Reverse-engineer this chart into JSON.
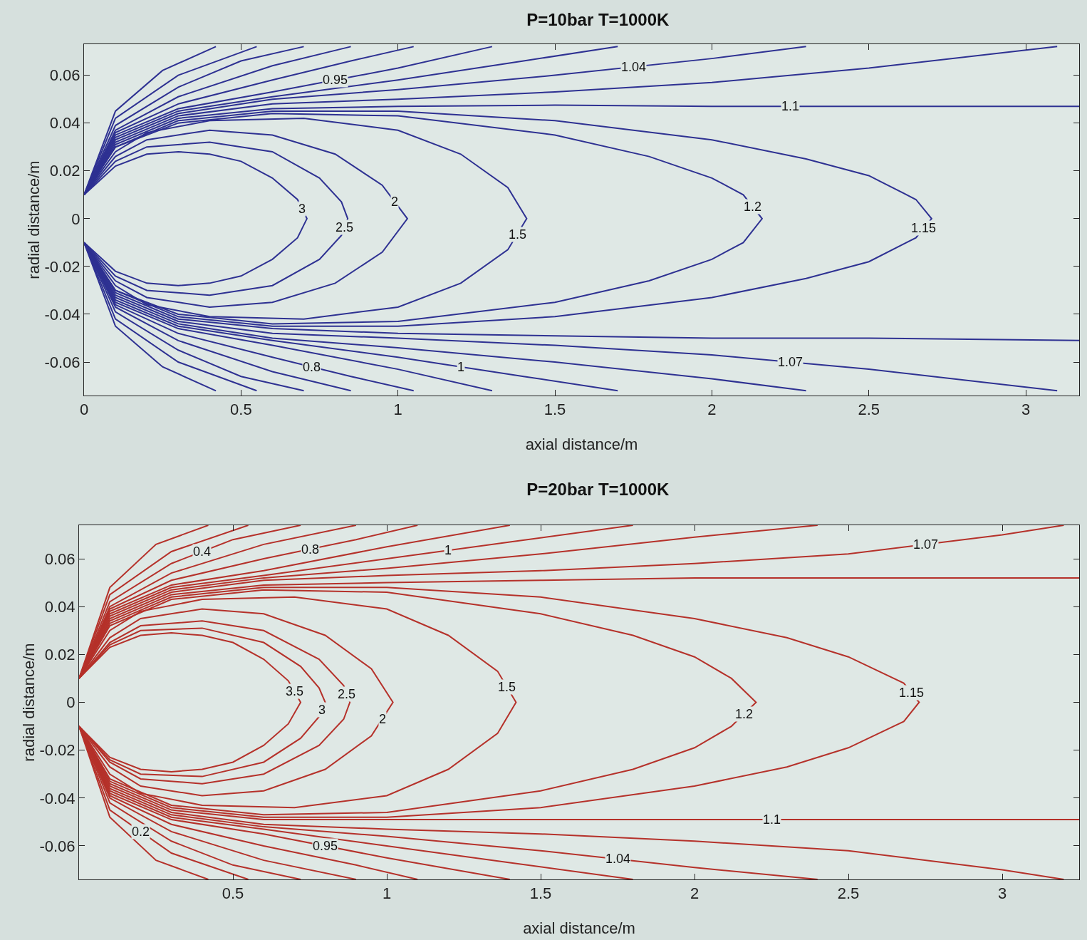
{
  "chart_data": [
    {
      "type": "line",
      "title": "P=10bar T=1000K",
      "xlabel": "axial distance/m",
      "ylabel": "radial distance/m",
      "xlim": [
        0,
        3.17
      ],
      "ylim": [
        -0.074,
        0.073
      ],
      "xticks": [
        0,
        0.5,
        1,
        1.5,
        2,
        2.5,
        3
      ],
      "yticks": [
        -0.06,
        -0.04,
        -0.02,
        0,
        0.02,
        0.04,
        0.06
      ],
      "grid": false,
      "legend": false,
      "series": [
        {
          "name": "3",
          "color": "#2e3192",
          "x": [
            0,
            0.1,
            0.2,
            0.3,
            0.4,
            0.5,
            0.6,
            0.68,
            0.71,
            0.68,
            0.6,
            0.5,
            0.4,
            0.3,
            0.2,
            0.1,
            0
          ],
          "values": [
            0.01,
            0.022,
            0.027,
            0.028,
            0.027,
            0.024,
            0.017,
            0.008,
            0,
            -0.008,
            -0.017,
            -0.024,
            -0.027,
            -0.028,
            -0.027,
            -0.022,
            -0.01
          ]
        },
        {
          "name": "2.5",
          "color": "#2e3192",
          "x": [
            0,
            0.1,
            0.2,
            0.4,
            0.6,
            0.75,
            0.82,
            0.84,
            0.82,
            0.75,
            0.6,
            0.4,
            0.2,
            0.1,
            0
          ],
          "values": [
            0.01,
            0.024,
            0.03,
            0.032,
            0.028,
            0.017,
            0.007,
            0,
            -0.007,
            -0.017,
            -0.028,
            -0.032,
            -0.03,
            -0.024,
            -0.01
          ]
        },
        {
          "name": "2",
          "color": "#2e3192",
          "x": [
            0,
            0.1,
            0.2,
            0.4,
            0.6,
            0.8,
            0.95,
            1.03,
            0.95,
            0.8,
            0.6,
            0.4,
            0.2,
            0.1,
            0
          ],
          "values": [
            0.01,
            0.026,
            0.033,
            0.037,
            0.035,
            0.027,
            0.014,
            0,
            -0.014,
            -0.027,
            -0.035,
            -0.037,
            -0.033,
            -0.026,
            -0.01
          ]
        },
        {
          "name": "1.5",
          "color": "#2e3192",
          "x": [
            0,
            0.1,
            0.2,
            0.4,
            0.7,
            1.0,
            1.2,
            1.35,
            1.41,
            1.35,
            1.2,
            1.0,
            0.7,
            0.4,
            0.2,
            0.1,
            0
          ],
          "values": [
            0.01,
            0.028,
            0.036,
            0.041,
            0.042,
            0.037,
            0.027,
            0.013,
            0,
            -0.013,
            -0.027,
            -0.037,
            -0.042,
            -0.041,
            -0.036,
            -0.028,
            -0.01
          ]
        },
        {
          "name": "1.2",
          "color": "#2e3192",
          "x": [
            0,
            0.1,
            0.3,
            0.6,
            1.0,
            1.5,
            1.8,
            2.0,
            2.1,
            2.16,
            2.1,
            2.0,
            1.8,
            1.5,
            1.0,
            0.6,
            0.3,
            0.1,
            0
          ],
          "values": [
            0.01,
            0.03,
            0.04,
            0.044,
            0.043,
            0.035,
            0.026,
            0.017,
            0.01,
            0,
            -0.01,
            -0.017,
            -0.026,
            -0.035,
            -0.043,
            -0.044,
            -0.04,
            -0.03,
            -0.01
          ]
        },
        {
          "name": "1.15",
          "color": "#2e3192",
          "x": [
            0,
            0.1,
            0.3,
            0.6,
            1.0,
            1.5,
            2.0,
            2.3,
            2.5,
            2.65,
            2.7,
            2.65,
            2.5,
            2.3,
            2.0,
            1.5,
            1.0,
            0.6,
            0.3,
            0.1,
            0
          ],
          "values": [
            0.01,
            0.03,
            0.041,
            0.045,
            0.045,
            0.041,
            0.033,
            0.025,
            0.018,
            0.008,
            0,
            -0.008,
            -0.018,
            -0.025,
            -0.033,
            -0.041,
            -0.045,
            -0.045,
            -0.041,
            -0.03,
            -0.01
          ]
        },
        {
          "name": "1.1",
          "color": "#2e3192",
          "x": [
            0,
            0.1,
            0.3,
            0.6,
            1.0,
            1.5,
            2.0,
            2.5,
            3.17,
            null,
            0,
            0.1,
            0.3,
            0.6,
            1.0,
            1.5,
            2.0,
            2.5,
            3.17
          ],
          "values": [
            0.01,
            0.031,
            0.042,
            0.046,
            0.047,
            0.0475,
            0.047,
            0.047,
            0.047,
            null,
            -0.01,
            -0.031,
            -0.042,
            -0.046,
            -0.048,
            -0.049,
            -0.05,
            -0.05,
            -0.051
          ]
        },
        {
          "name": "1.07",
          "color": "#2e3192",
          "x": [
            0,
            0.1,
            0.3,
            0.6,
            1.0,
            1.5,
            2.0,
            2.5,
            3.1,
            null,
            0,
            0.1,
            0.3,
            0.6,
            1.0,
            1.5,
            2.0,
            2.5,
            3.1
          ],
          "values": [
            0.01,
            0.032,
            0.043,
            0.048,
            0.05,
            0.053,
            0.057,
            0.063,
            0.072,
            null,
            -0.01,
            -0.032,
            -0.043,
            -0.048,
            -0.05,
            -0.053,
            -0.057,
            -0.063,
            -0.072
          ]
        },
        {
          "name": "1.04",
          "color": "#2e3192",
          "x": [
            0,
            0.1,
            0.3,
            0.6,
            1.0,
            1.5,
            2.0,
            2.3,
            null,
            0,
            0.1,
            0.3,
            0.6,
            1.0,
            1.5,
            2.0,
            2.3
          ],
          "values": [
            0.01,
            0.033,
            0.044,
            0.05,
            0.054,
            0.06,
            0.067,
            0.072,
            null,
            -0.01,
            -0.033,
            -0.044,
            -0.05,
            -0.054,
            -0.06,
            -0.067,
            -0.072
          ]
        },
        {
          "name": "1",
          "color": "#2e3192",
          "x": [
            0,
            0.1,
            0.3,
            0.6,
            1.0,
            1.4,
            1.7,
            null,
            0,
            0.1,
            0.3,
            0.6,
            1.0,
            1.4,
            1.7
          ],
          "values": [
            0.01,
            0.034,
            0.045,
            0.051,
            0.058,
            0.066,
            0.072,
            null,
            -0.01,
            -0.034,
            -0.045,
            -0.051,
            -0.058,
            -0.066,
            -0.072
          ]
        },
        {
          "name": "0.95",
          "color": "#2e3192",
          "x": [
            0,
            0.1,
            0.3,
            0.6,
            1.0,
            1.3,
            null,
            0,
            0.1,
            0.3,
            0.6,
            1.0,
            1.3
          ],
          "values": [
            0.01,
            0.035,
            0.046,
            0.053,
            0.063,
            0.072,
            null,
            -0.01,
            -0.035,
            -0.046,
            -0.053,
            -0.063,
            -0.072
          ]
        },
        {
          "name": "0.8",
          "color": "#2e3192",
          "x": [
            0,
            0.1,
            0.3,
            0.6,
            0.85,
            1.05,
            null,
            0,
            0.1,
            0.3,
            0.6,
            0.85,
            1.05
          ],
          "values": [
            0.01,
            0.036,
            0.048,
            0.058,
            0.066,
            0.072,
            null,
            -0.01,
            -0.036,
            -0.048,
            -0.058,
            -0.066,
            -0.072
          ]
        },
        {
          "color": "#2e3192",
          "x": [
            0,
            0.1,
            0.3,
            0.6,
            0.85,
            null,
            0,
            0.1,
            0.3,
            0.6,
            0.85
          ],
          "values": [
            0.01,
            0.037,
            0.051,
            0.064,
            0.072,
            null,
            -0.01,
            -0.037,
            -0.051,
            -0.064,
            -0.072
          ]
        },
        {
          "color": "#2e3192",
          "x": [
            0,
            0.1,
            0.3,
            0.5,
            0.7,
            null,
            0,
            0.1,
            0.3,
            0.5,
            0.7
          ],
          "values": [
            0.01,
            0.039,
            0.055,
            0.066,
            0.072,
            null,
            -0.01,
            -0.039,
            -0.055,
            -0.066,
            -0.072
          ]
        },
        {
          "color": "#2e3192",
          "x": [
            0,
            0.1,
            0.3,
            0.55,
            null,
            0,
            0.1,
            0.3,
            0.55
          ],
          "values": [
            0.01,
            0.042,
            0.06,
            0.072,
            null,
            -0.01,
            -0.042,
            -0.06,
            -0.072
          ]
        },
        {
          "color": "#2e3192",
          "x": [
            0,
            0.1,
            0.25,
            0.42,
            null,
            0,
            0.1,
            0.25,
            0.42
          ],
          "values": [
            0.01,
            0.045,
            0.062,
            0.072,
            null,
            -0.01,
            -0.045,
            -0.062,
            -0.072
          ]
        }
      ]
    },
    {
      "type": "line",
      "title": "P=20bar T=1000K",
      "xlabel": "axial distance/m",
      "ylabel": "radial distance/m",
      "xlim": [
        0,
        3.25
      ],
      "ylim": [
        -0.074,
        0.074
      ],
      "xticks": [
        0.5,
        1,
        1.5,
        2,
        2.5,
        3
      ],
      "yticks": [
        -0.06,
        -0.04,
        -0.02,
        0,
        0.02,
        0.04,
        0.06
      ],
      "grid": false,
      "legend": false,
      "series": [
        {
          "name": "3.5",
          "color": "#b5312a",
          "x": [
            0,
            0.1,
            0.2,
            0.3,
            0.4,
            0.5,
            0.6,
            0.68,
            0.72,
            0.68,
            0.6,
            0.5,
            0.4,
            0.3,
            0.2,
            0.1,
            0
          ],
          "values": [
            0.01,
            0.023,
            0.028,
            0.029,
            0.028,
            0.025,
            0.018,
            0.009,
            0,
            -0.009,
            -0.018,
            -0.025,
            -0.028,
            -0.029,
            -0.028,
            -0.023,
            -0.01
          ]
        },
        {
          "name": "3",
          "color": "#b5312a",
          "x": [
            0,
            0.1,
            0.2,
            0.4,
            0.6,
            0.72,
            0.78,
            0.8,
            0.78,
            0.72,
            0.6,
            0.4,
            0.2,
            0.1,
            0
          ],
          "values": [
            0.01,
            0.024,
            0.03,
            0.031,
            0.025,
            0.015,
            0.006,
            0,
            -0.006,
            -0.015,
            -0.025,
            -0.031,
            -0.03,
            -0.024,
            -0.01
          ]
        },
        {
          "name": "2.5",
          "color": "#b5312a",
          "x": [
            0,
            0.1,
            0.2,
            0.4,
            0.6,
            0.78,
            0.86,
            0.88,
            0.86,
            0.78,
            0.6,
            0.4,
            0.2,
            0.1,
            0
          ],
          "values": [
            0.01,
            0.025,
            0.032,
            0.034,
            0.03,
            0.018,
            0.007,
            0,
            -0.007,
            -0.018,
            -0.03,
            -0.034,
            -0.032,
            -0.025,
            -0.01
          ]
        },
        {
          "name": "2",
          "color": "#b5312a",
          "x": [
            0,
            0.1,
            0.2,
            0.4,
            0.6,
            0.8,
            0.95,
            1.02,
            0.95,
            0.8,
            0.6,
            0.4,
            0.2,
            0.1,
            0
          ],
          "values": [
            0.01,
            0.027,
            0.035,
            0.039,
            0.037,
            0.028,
            0.014,
            0,
            -0.014,
            -0.028,
            -0.037,
            -0.039,
            -0.035,
            -0.027,
            -0.01
          ]
        },
        {
          "name": "1.5",
          "color": "#b5312a",
          "x": [
            0,
            0.1,
            0.2,
            0.4,
            0.7,
            1.0,
            1.2,
            1.36,
            1.42,
            1.36,
            1.2,
            1.0,
            0.7,
            0.4,
            0.2,
            0.1,
            0
          ],
          "values": [
            0.01,
            0.03,
            0.038,
            0.043,
            0.044,
            0.039,
            0.028,
            0.013,
            0,
            -0.013,
            -0.028,
            -0.039,
            -0.044,
            -0.043,
            -0.038,
            -0.03,
            -0.01
          ]
        },
        {
          "name": "1.2",
          "color": "#b5312a",
          "x": [
            0,
            0.1,
            0.3,
            0.6,
            1.0,
            1.5,
            1.8,
            2.0,
            2.12,
            2.2,
            2.12,
            2.0,
            1.8,
            1.5,
            1.0,
            0.6,
            0.3,
            0.1,
            0
          ],
          "values": [
            0.01,
            0.032,
            0.043,
            0.047,
            0.046,
            0.037,
            0.028,
            0.019,
            0.01,
            0,
            -0.01,
            -0.019,
            -0.028,
            -0.037,
            -0.046,
            -0.047,
            -0.043,
            -0.032,
            -0.01
          ]
        },
        {
          "name": "1.15",
          "color": "#b5312a",
          "x": [
            0,
            0.1,
            0.3,
            0.6,
            1.0,
            1.5,
            2.0,
            2.3,
            2.5,
            2.68,
            2.73,
            2.68,
            2.5,
            2.3,
            2.0,
            1.5,
            1.0,
            0.6,
            0.3,
            0.1,
            0
          ],
          "values": [
            0.01,
            0.033,
            0.044,
            0.048,
            0.048,
            0.044,
            0.035,
            0.027,
            0.019,
            0.008,
            0,
            -0.008,
            -0.019,
            -0.027,
            -0.035,
            -0.044,
            -0.048,
            -0.048,
            -0.044,
            -0.033,
            -0.01
          ]
        },
        {
          "name": "1.1",
          "color": "#b5312a",
          "x": [
            0,
            0.1,
            0.3,
            0.6,
            1.0,
            1.5,
            2.0,
            2.5,
            3.25,
            null,
            0,
            0.1,
            0.3,
            0.6,
            1.0,
            1.5,
            2.0,
            2.5,
            3.25
          ],
          "values": [
            0.01,
            0.034,
            0.045,
            0.049,
            0.05,
            0.051,
            0.052,
            0.052,
            0.052,
            null,
            -0.01,
            -0.034,
            -0.045,
            -0.049,
            -0.049,
            -0.049,
            -0.049,
            -0.049,
            -0.049
          ]
        },
        {
          "name": "1.07",
          "color": "#b5312a",
          "x": [
            0,
            0.1,
            0.3,
            0.6,
            1.0,
            1.5,
            2.0,
            2.5,
            3.0,
            3.2,
            null,
            0,
            0.1,
            0.3,
            0.6,
            1.0,
            1.5,
            2.0,
            2.5,
            3.0,
            3.2
          ],
          "values": [
            0.01,
            0.035,
            0.046,
            0.051,
            0.053,
            0.055,
            0.058,
            0.062,
            0.07,
            0.074,
            null,
            -0.01,
            -0.035,
            -0.046,
            -0.051,
            -0.053,
            -0.055,
            -0.058,
            -0.062,
            -0.07,
            -0.074
          ]
        },
        {
          "name": "1.04",
          "color": "#b5312a",
          "x": [
            0,
            0.1,
            0.3,
            0.6,
            1.0,
            1.5,
            2.0,
            2.4,
            null,
            0,
            0.1,
            0.3,
            0.6,
            1.0,
            1.5,
            2.0,
            2.4
          ],
          "values": [
            0.01,
            0.036,
            0.047,
            0.052,
            0.056,
            0.062,
            0.069,
            0.074,
            null,
            -0.01,
            -0.036,
            -0.047,
            -0.052,
            -0.056,
            -0.062,
            -0.069,
            -0.074
          ]
        },
        {
          "name": "1",
          "color": "#b5312a",
          "x": [
            0,
            0.1,
            0.3,
            0.6,
            1.0,
            1.4,
            1.8,
            null,
            0,
            0.1,
            0.3,
            0.6,
            1.0,
            1.4,
            1.8
          ],
          "values": [
            0.01,
            0.037,
            0.048,
            0.053,
            0.06,
            0.067,
            0.074,
            null,
            -0.01,
            -0.037,
            -0.048,
            -0.053,
            -0.06,
            -0.067,
            -0.074
          ]
        },
        {
          "name": "0.95",
          "color": "#b5312a",
          "x": [
            0,
            0.1,
            0.3,
            0.6,
            1.0,
            1.4,
            null,
            0,
            0.1,
            0.3,
            0.6,
            1.0,
            1.4
          ],
          "values": [
            0.01,
            0.038,
            0.049,
            0.055,
            0.065,
            0.074,
            null,
            -0.01,
            -0.038,
            -0.049,
            -0.055,
            -0.065,
            -0.074
          ]
        },
        {
          "name": "0.8",
          "color": "#b5312a",
          "x": [
            0,
            0.1,
            0.3,
            0.6,
            0.9,
            1.1,
            null,
            0,
            0.1,
            0.3,
            0.6,
            0.9,
            1.1
          ],
          "values": [
            0.01,
            0.039,
            0.051,
            0.06,
            0.068,
            0.074,
            null,
            -0.01,
            -0.039,
            -0.051,
            -0.06,
            -0.068,
            -0.074
          ]
        },
        {
          "color": "#b5312a",
          "x": [
            0,
            0.1,
            0.3,
            0.6,
            0.9,
            null,
            0,
            0.1,
            0.3,
            0.6,
            0.9
          ],
          "values": [
            0.01,
            0.04,
            0.054,
            0.066,
            0.074,
            null,
            -0.01,
            -0.04,
            -0.054,
            -0.066,
            -0.074
          ]
        },
        {
          "name": "0.4",
          "color": "#b5312a",
          "x": [
            0,
            0.1,
            0.3,
            0.5,
            0.72,
            null,
            0,
            0.1,
            0.3,
            0.5,
            0.72
          ],
          "values": [
            0.01,
            0.042,
            0.058,
            0.068,
            0.074,
            null,
            -0.01,
            -0.042,
            -0.058,
            -0.068,
            -0.074
          ]
        },
        {
          "name": "0.2",
          "color": "#b5312a",
          "x": [
            0,
            0.1,
            0.3,
            0.55,
            null,
            0,
            0.1,
            0.3,
            0.55
          ],
          "values": [
            0.01,
            0.045,
            0.063,
            0.074,
            null,
            -0.01,
            -0.045,
            -0.063,
            -0.074
          ]
        },
        {
          "color": "#b5312a",
          "x": [
            0,
            0.1,
            0.25,
            0.42,
            null,
            0,
            0.1,
            0.25,
            0.42
          ],
          "values": [
            0.01,
            0.048,
            0.066,
            0.074,
            null,
            -0.01,
            -0.048,
            -0.066,
            -0.074
          ]
        }
      ]
    }
  ]
}
